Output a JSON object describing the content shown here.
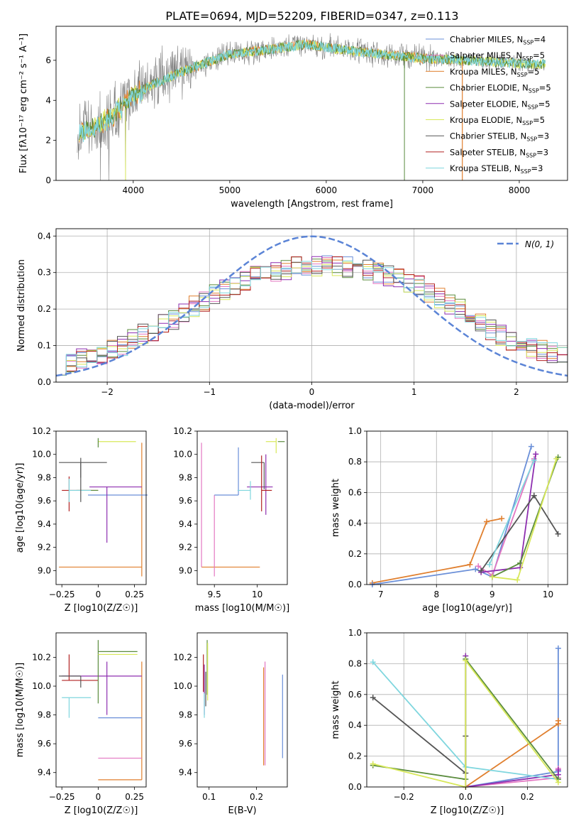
{
  "title": "PLATE=0694, MJD=52209, FIBERID=0347, z=0.113",
  "colors": {
    "chabrier_miles": "#6a8fd8",
    "salpeter_miles": "#e377c2",
    "kroupa_miles": "#e07f2e",
    "chabrier_elodie": "#5b8c3e",
    "salpeter_elodie": "#8e2fb0",
    "kroupa_elodie": "#d8e85a",
    "chabrier_stelib": "#555555",
    "salpeter_stelib": "#b22222",
    "kroupa_stelib": "#7fd6de",
    "data": "#808080",
    "normal": "#5b84d6",
    "grid": "#b0b0b0"
  },
  "chart_data": [
    {
      "id": "spectrum",
      "type": "line",
      "xlabel": "wavelength [Angstrom, rest frame]",
      "ylabel": "Flux [fλ10⁻¹⁷ erg cm⁻² s⁻¹ A⁻¹]",
      "xlim": [
        3200,
        8500
      ],
      "ylim": [
        0,
        7.7
      ],
      "xticks": [
        4000,
        5000,
        6000,
        7000,
        8000
      ],
      "yticks": [
        0,
        2,
        4,
        6
      ],
      "legend_position": "top-right",
      "legend": [
        "Chabrier MILES, N_SSP=4",
        "Salpeter MILES, N_SSP=5",
        "Kroupa MILES, N_SSP=5",
        "Chabrier ELODIE, N_SSP=5",
        "Salpeter ELODIE, N_SSP=5",
        "Kroupa ELODIE, N_SSP=5",
        "Chabrier STELIB, N_SSP=3",
        "Salpeter STELIB, N_SSP=3",
        "Kroupa STELIB, N_SSP=3"
      ],
      "continuum": [
        [
          3400,
          2.4
        ],
        [
          3600,
          2.6
        ],
        [
          3800,
          3.3
        ],
        [
          4000,
          4.3
        ],
        [
          4300,
          5.0
        ],
        [
          4600,
          5.6
        ],
        [
          5000,
          6.3
        ],
        [
          5500,
          6.6
        ],
        [
          5800,
          6.8
        ],
        [
          6200,
          6.5
        ],
        [
          6600,
          6.3
        ],
        [
          7000,
          6.1
        ],
        [
          7400,
          6.0
        ],
        [
          7800,
          5.9
        ],
        [
          8270,
          5.8
        ]
      ]
    },
    {
      "id": "residuals",
      "type": "histogram",
      "xlabel": "(data-model)/error",
      "ylabel": "Normed distribution",
      "xlim": [
        -2.5,
        2.5
      ],
      "ylim": [
        0,
        0.42
      ],
      "xticks": [
        -2,
        -1,
        0,
        1,
        2
      ],
      "yticks": [
        0.0,
        0.1,
        0.2,
        0.3,
        0.4
      ],
      "grid": true,
      "legend_position": "top-right",
      "normal_label": "N(0, 1)",
      "bin_width": 0.1,
      "profile_x": [
        -2.5,
        -2.0,
        -1.5,
        -1.0,
        -0.5,
        0.0,
        0.5,
        1.0,
        1.5,
        2.0,
        2.5
      ],
      "profile_y": [
        0.045,
        0.08,
        0.15,
        0.23,
        0.3,
        0.32,
        0.31,
        0.27,
        0.19,
        0.1,
        0.07
      ]
    },
    {
      "id": "age_vs_Z",
      "type": "errorbar",
      "xlabel": "Z [log10(Z/Z☉)]",
      "ylabel": "age  [log10(age/yr)]",
      "xlim": [
        -0.29,
        0.33
      ],
      "ylim": [
        8.88,
        10.2
      ],
      "xticks": [
        -0.25,
        0.0,
        0.25
      ],
      "yticks": [
        9.0,
        9.2,
        9.4,
        9.6,
        9.8,
        10.0,
        10.2
      ],
      "points": [
        {
          "c": "kroupa_miles",
          "x": 0.3,
          "y": 9.03,
          "xerr": [
            0.57,
            0.0
          ],
          "yerr": [
            0.08,
            1.07
          ]
        },
        {
          "c": "chabrier_miles",
          "x": 0.06,
          "y": 9.65,
          "xerr": [
            0.13,
            0.28
          ],
          "yerr": [
            0.0,
            0.0
          ]
        },
        {
          "c": "kroupa_stelib",
          "x": 0.0,
          "y": 10.11,
          "xerr": [
            0.0,
            0.0
          ],
          "yerr": [
            0.0,
            0.0
          ]
        },
        {
          "c": "salpeter_elodie",
          "x": 0.06,
          "y": 9.72,
          "xerr": [
            0.12,
            0.24
          ],
          "yerr": [
            0.48,
            0.0
          ]
        },
        {
          "c": "chabrier_stelib",
          "x": -0.12,
          "y": 9.93,
          "xerr": [
            0.15,
            0.18
          ],
          "yerr": [
            0.13,
            0.0
          ]
        },
        {
          "c": "salpeter_stelib",
          "x": -0.2,
          "y": 9.69,
          "xerr": [
            0.05,
            0.2
          ],
          "yerr": [
            0.18,
            0.12
          ]
        },
        {
          "c": "chabrier_elodie",
          "x": 0.0,
          "y": 9.69,
          "xerr": [
            0.15,
            0.0
          ],
          "yerr": [
            0.0,
            0.0
          ]
        },
        {
          "c": "kroupa_stelib",
          "x": -0.2,
          "y": 9.69,
          "xerr": [
            0.0,
            0.15
          ],
          "yerr": [
            0.1,
            0.1
          ]
        },
        {
          "c": "chabrier_stelib",
          "x": -0.12,
          "y": 9.69,
          "xerr": [
            0.0,
            0.0
          ],
          "yerr": [
            0.1,
            0.28
          ]
        },
        {
          "c": "kroupa_elodie",
          "x": 0.0,
          "y": 10.11,
          "xerr": [
            0.0,
            0.26
          ],
          "yerr": [
            0.0,
            0.0
          ]
        },
        {
          "c": "chabrier_elodie",
          "x": 0.0,
          "y": 10.11,
          "xerr": [
            0.0,
            0.0
          ],
          "yerr": [
            0.05,
            0.03
          ]
        }
      ]
    },
    {
      "id": "age_vs_mass",
      "type": "errorbar",
      "xlabel": "mass [log10(M/M☉)]",
      "ylabel": "",
      "xlim": [
        9.3,
        10.35
      ],
      "ylim": [
        8.88,
        10.2
      ],
      "xticks": [
        9.5,
        10.0
      ],
      "yticks": [
        9.0,
        9.2,
        9.4,
        9.6,
        9.8,
        10.0,
        10.2
      ],
      "points": [
        {
          "c": "kroupa_miles",
          "x": 9.35,
          "y": 9.03,
          "xerr": [
            0.0,
            0.68
          ],
          "yerr": [
            0.0,
            0.0
          ]
        },
        {
          "c": "salpeter_miles",
          "x": 9.35,
          "y": 9.03,
          "xerr": [
            0.0,
            0.0
          ],
          "yerr": [
            0.0,
            1.07
          ]
        },
        {
          "c": "salpeter_miles",
          "x": 9.5,
          "y": 9.65,
          "xerr": [
            0.0,
            0.0
          ],
          "yerr": [
            0.7,
            0.0
          ]
        },
        {
          "c": "chabrier_miles",
          "x": 9.78,
          "y": 9.65,
          "xerr": [
            0.28,
            0.0
          ],
          "yerr": [
            0.0,
            0.41
          ]
        },
        {
          "c": "salpeter_elodie",
          "x": 10.1,
          "y": 9.72,
          "xerr": [
            0.22,
            0.08
          ],
          "yerr": [
            0.24,
            0.28
          ]
        },
        {
          "c": "kroupa_stelib",
          "x": 9.92,
          "y": 9.69,
          "xerr": [
            0.15,
            0.0
          ],
          "yerr": [
            0.08,
            0.08
          ]
        },
        {
          "c": "chabrier_stelib",
          "x": 10.08,
          "y": 9.93,
          "xerr": [
            0.15,
            0.0
          ],
          "yerr": [
            0.23,
            0.0
          ]
        },
        {
          "c": "salpeter_stelib",
          "x": 10.05,
          "y": 9.69,
          "xerr": [
            0.0,
            0.12
          ],
          "yerr": [
            0.18,
            0.3
          ]
        },
        {
          "c": "kroupa_elodie",
          "x": 10.22,
          "y": 10.11,
          "xerr": [
            0.12,
            0.0
          ],
          "yerr": [
            0.1,
            0.03
          ]
        },
        {
          "c": "chabrier_elodie",
          "x": 10.24,
          "y": 10.11,
          "xerr": [
            0.0,
            0.08
          ],
          "yerr": [
            0.0,
            0.0
          ]
        }
      ]
    },
    {
      "id": "mass_weight_vs_age",
      "type": "line",
      "xlabel": "age  [log10(age/yr)]",
      "ylabel": "mass weight",
      "xlim": [
        6.75,
        10.35
      ],
      "ylim": [
        0.0,
        1.0
      ],
      "xticks": [
        7,
        8,
        9,
        10
      ],
      "yticks": [
        0.0,
        0.2,
        0.4,
        0.6,
        0.8,
        1.0
      ],
      "grid": true,
      "series": [
        {
          "c": "kroupa_miles",
          "x": [
            6.85,
            8.6,
            8.9,
            9.17
          ],
          "y": [
            0.01,
            0.13,
            0.41,
            0.43
          ]
        },
        {
          "c": "chabrier_miles",
          "x": [
            6.85,
            8.7,
            9.0,
            9.7
          ],
          "y": [
            0.0,
            0.1,
            0.05,
            0.9
          ]
        },
        {
          "c": "salpeter_miles",
          "x": [
            8.75,
            9.0,
            9.75
          ],
          "y": [
            0.12,
            0.06,
            0.82
          ]
        },
        {
          "c": "salpeter_elodie",
          "x": [
            8.8,
            9.5,
            9.78
          ],
          "y": [
            0.08,
            0.11,
            0.85
          ]
        },
        {
          "c": "chabrier_stelib",
          "x": [
            8.8,
            9.75,
            10.18
          ],
          "y": [
            0.09,
            0.58,
            0.33
          ]
        },
        {
          "c": "kroupa_stelib",
          "x": [
            8.95,
            9.75
          ],
          "y": [
            0.13,
            0.81
          ]
        },
        {
          "c": "chabrier_elodie",
          "x": [
            9.0,
            9.5,
            10.18
          ],
          "y": [
            0.05,
            0.14,
            0.83
          ]
        },
        {
          "c": "kroupa_elodie",
          "x": [
            9.0,
            9.45,
            10.15
          ],
          "y": [
            0.05,
            0.03,
            0.82
          ]
        }
      ]
    },
    {
      "id": "mass_vs_Z",
      "type": "errorbar",
      "xlabel": "Z [log10(Z/Z☉)]",
      "ylabel": "mass [log10(M/M☉)]",
      "xlim": [
        -0.29,
        0.33
      ],
      "ylim": [
        9.3,
        10.37
      ],
      "xticks": [
        -0.25,
        0.0,
        0.25
      ],
      "yticks": [
        9.4,
        9.6,
        9.8,
        10.0,
        10.2
      ],
      "points": [
        {
          "c": "kroupa_miles",
          "x": 0.3,
          "y": 9.35,
          "xerr": [
            0.3,
            0.0
          ],
          "yerr": [
            0.0,
            0.82
          ]
        },
        {
          "c": "salpeter_miles",
          "x": 0.0,
          "y": 9.5,
          "xerr": [
            0.0,
            0.3
          ],
          "yerr": [
            0.0,
            0.0
          ]
        },
        {
          "c": "chabrier_miles",
          "x": 0.0,
          "y": 9.78,
          "xerr": [
            0.0,
            0.3
          ],
          "yerr": [
            0.0,
            0.0
          ]
        },
        {
          "c": "kroupa_stelib",
          "x": -0.2,
          "y": 9.92,
          "xerr": [
            0.05,
            0.15
          ],
          "yerr": [
            0.14,
            0.0
          ]
        },
        {
          "c": "salpeter_elodie",
          "x": 0.06,
          "y": 10.07,
          "xerr": [
            0.31,
            0.24
          ],
          "yerr": [
            0.27,
            0.1
          ]
        },
        {
          "c": "salpeter_stelib",
          "x": -0.2,
          "y": 10.04,
          "xerr": [
            0.05,
            0.2
          ],
          "yerr": [
            0.0,
            0.18
          ]
        },
        {
          "c": "chabrier_stelib",
          "x": -0.12,
          "y": 10.07,
          "xerr": [
            0.15,
            0.0
          ],
          "yerr": [
            0.08,
            0.0
          ]
        },
        {
          "c": "chabrier_elodie",
          "x": 0.0,
          "y": 10.24,
          "xerr": [
            0.0,
            0.27
          ],
          "yerr": [
            0.36,
            0.08
          ]
        },
        {
          "c": "kroupa_elodie",
          "x": 0.0,
          "y": 10.22,
          "xerr": [
            0.0,
            0.27
          ],
          "yerr": [
            0.0,
            0.0
          ]
        }
      ]
    },
    {
      "id": "mass_vs_ebv",
      "type": "errorbar",
      "xlabel": "E(B-V)",
      "ylabel": "",
      "xlim": [
        0.075,
        0.265
      ],
      "ylim": [
        9.3,
        10.37
      ],
      "xticks": [
        0.1,
        0.2
      ],
      "yticks": [
        9.4,
        9.6,
        9.8,
        10.0,
        10.2
      ],
      "points": [
        {
          "c": "chabrier_miles",
          "x": 0.255,
          "y": 9.78,
          "xerr": [
            0,
            0
          ],
          "yerr": [
            0.28,
            0.3
          ]
        },
        {
          "c": "kroupa_miles",
          "x": 0.215,
          "y": 9.5,
          "xerr": [
            0,
            0
          ],
          "yerr": [
            0.05,
            0.63
          ]
        },
        {
          "c": "salpeter_miles",
          "x": 0.218,
          "y": 9.78,
          "xerr": [
            0,
            0
          ],
          "yerr": [
            0.33,
            0.39
          ]
        },
        {
          "c": "salpeter_elodie",
          "x": 0.09,
          "y": 10.07,
          "xerr": [
            0,
            0
          ],
          "yerr": [
            0.27,
            0.08
          ]
        },
        {
          "c": "salpeter_stelib",
          "x": 0.088,
          "y": 10.04,
          "xerr": [
            0,
            0
          ],
          "yerr": [
            0.08,
            0.18
          ]
        },
        {
          "c": "chabrier_elodie",
          "x": 0.096,
          "y": 10.24,
          "xerr": [
            0,
            0
          ],
          "yerr": [
            0.3,
            0.08
          ]
        },
        {
          "c": "kroupa_elodie",
          "x": 0.097,
          "y": 10.2,
          "xerr": [
            0,
            0
          ],
          "yerr": [
            0.3,
            0.1
          ]
        },
        {
          "c": "chabrier_stelib",
          "x": 0.093,
          "y": 10.1,
          "xerr": [
            0,
            0
          ],
          "yerr": [
            0.24,
            0.0
          ]
        },
        {
          "c": "kroupa_stelib",
          "x": 0.09,
          "y": 9.95,
          "xerr": [
            0,
            0
          ],
          "yerr": [
            0.17,
            0.0
          ]
        }
      ]
    },
    {
      "id": "mass_weight_vs_Z",
      "type": "line",
      "xlabel": "Z [log10(Z/Z☉)]",
      "ylabel": "mass weight",
      "xlim": [
        -0.32,
        0.33
      ],
      "ylim": [
        0.0,
        1.0
      ],
      "xticks": [
        -0.2,
        0.0,
        0.2
      ],
      "yticks": [
        0.0,
        0.2,
        0.4,
        0.6,
        0.8,
        1.0
      ],
      "grid": true,
      "series": [
        {
          "c": "chabrier_miles",
          "x": [
            0.0,
            0.3,
            0.3
          ],
          "y": [
            0.0,
            0.1,
            0.9
          ]
        },
        {
          "c": "kroupa_miles",
          "x": [
            0.0,
            0.3,
            0.3
          ],
          "y": [
            0.0,
            0.41,
            0.43
          ]
        },
        {
          "c": "salpeter_miles",
          "x": [
            0.0,
            0.3,
            0.3
          ],
          "y": [
            0.0,
            0.06,
            0.12
          ]
        },
        {
          "c": "salpeter_elodie",
          "x": [
            0.0,
            0.0,
            0.3,
            0.3
          ],
          "y": [
            0.85,
            0.0,
            0.08,
            0.11
          ]
        },
        {
          "c": "chabrier_stelib",
          "x": [
            -0.3,
            0.0,
            0.0
          ],
          "y": [
            0.58,
            0.09,
            0.33
          ]
        },
        {
          "c": "kroupa_stelib",
          "x": [
            -0.3,
            0.0,
            0.3
          ],
          "y": [
            0.81,
            0.13,
            0.05
          ]
        },
        {
          "c": "chabrier_elodie",
          "x": [
            -0.3,
            0.0,
            0.0,
            0.3
          ],
          "y": [
            0.14,
            0.05,
            0.83,
            0.05
          ]
        },
        {
          "c": "kroupa_elodie",
          "x": [
            -0.3,
            0.0,
            0.0,
            0.3
          ],
          "y": [
            0.15,
            0.0,
            0.82,
            0.03
          ]
        }
      ]
    }
  ]
}
